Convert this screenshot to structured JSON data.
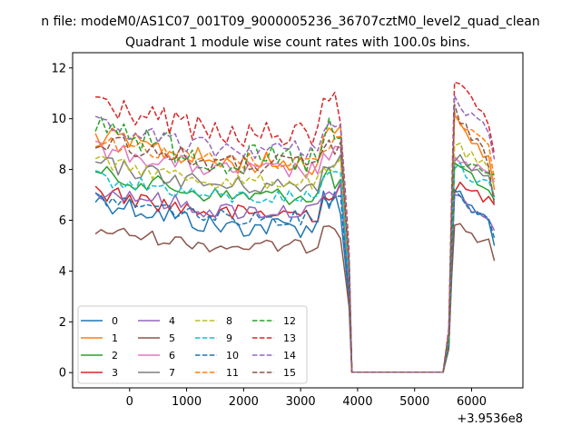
{
  "chart_data": {
    "type": "line",
    "suptitle": "n file: modeM0/AS1C07_001T09_9000005236_36707cztM0_level2_quad_clean",
    "title": "Quadrant 1 module wise count rates with 100.0s bins.",
    "xlabel": "",
    "ylabel": "",
    "x_offset_label": "+3.9536e8",
    "xlim": [
      -1000,
      6900
    ],
    "ylim": [
      -0.6,
      12.6
    ],
    "x_ticks": [
      0,
      1000,
      2000,
      3000,
      4000,
      5000,
      6000
    ],
    "y_ticks": [
      0,
      2,
      4,
      6,
      8,
      10,
      12
    ],
    "x_tick_labels": [
      "0",
      "1000",
      "2000",
      "3000",
      "4000",
      "5000",
      "6000"
    ],
    "y_tick_labels": [
      "0",
      "2",
      "4",
      "6",
      "8",
      "10",
      "12"
    ],
    "legend_position": "lower-left",
    "legend_columns": 4,
    "series": [
      {
        "name": "0",
        "color": "#1f77b4",
        "dash": "solid",
        "low": 5.3,
        "high": 7.3,
        "end": 5.0,
        "peak": 7.4
      },
      {
        "name": "1",
        "color": "#ff7f0e",
        "dash": "solid",
        "low": 7.8,
        "high": 9.8,
        "end": 7.2,
        "peak": 10.2
      },
      {
        "name": "2",
        "color": "#2ca02c",
        "dash": "solid",
        "low": 6.6,
        "high": 8.2,
        "end": 6.8,
        "peak": 8.3
      },
      {
        "name": "3",
        "color": "#d62728",
        "dash": "solid",
        "low": 5.9,
        "high": 7.5,
        "end": 6.6,
        "peak": 7.6
      },
      {
        "name": "4",
        "color": "#9467bd",
        "dash": "solid",
        "low": 6.0,
        "high": 7.6,
        "end": 5.6,
        "peak": 7.1
      },
      {
        "name": "5",
        "color": "#8c564b",
        "dash": "solid",
        "low": 4.7,
        "high": 5.9,
        "end": 4.4,
        "peak": 6.2
      },
      {
        "name": "6",
        "color": "#e377c2",
        "dash": "solid",
        "low": 7.6,
        "high": 9.2,
        "end": 7.5,
        "peak": 8.6
      },
      {
        "name": "7",
        "color": "#7f7f7f",
        "dash": "solid",
        "low": 7.0,
        "high": 8.6,
        "end": 6.9,
        "peak": 8.8
      },
      {
        "name": "8",
        "color": "#bcbd22",
        "dash": "dashed",
        "low": 7.2,
        "high": 8.6,
        "end": 7.3,
        "peak": 9.2
      },
      {
        "name": "9",
        "color": "#17becf",
        "dash": "dashed",
        "low": 6.6,
        "high": 8.0,
        "end": 6.9,
        "peak": 8.4
      },
      {
        "name": "10",
        "color": "#1f77b4",
        "dash": "dashed",
        "low": 5.8,
        "high": 7.2,
        "end": 5.3,
        "peak": 7.3
      },
      {
        "name": "11",
        "color": "#ff7f0e",
        "dash": "dashed",
        "low": 8.0,
        "high": 9.5,
        "end": 7.6,
        "peak": 10.5
      },
      {
        "name": "12",
        "color": "#2ca02c",
        "dash": "dashed",
        "low": 7.7,
        "high": 10.5,
        "end": 7.8,
        "peak": 8.5
      },
      {
        "name": "13",
        "color": "#d62728",
        "dash": "dashed",
        "low": 8.8,
        "high": 11.2,
        "end": 8.6,
        "peak": 11.7
      },
      {
        "name": "14",
        "color": "#9467bd",
        "dash": "dashed",
        "low": 8.4,
        "high": 10.1,
        "end": 8.4,
        "peak": 11.0
      },
      {
        "name": "15",
        "color": "#8c564b",
        "dash": "dashed",
        "low": 7.8,
        "high": 9.6,
        "end": 6.6,
        "peak": 10.6
      }
    ],
    "segments": {
      "first_start": -600,
      "first_end": 3700,
      "drop_points": [
        3800,
        3850
      ],
      "zero_start": 3900,
      "zero_end": 5500,
      "rise_points": [
        5600,
        5650
      ],
      "second_start": 5700,
      "second_end": 6400,
      "step": 100
    }
  }
}
